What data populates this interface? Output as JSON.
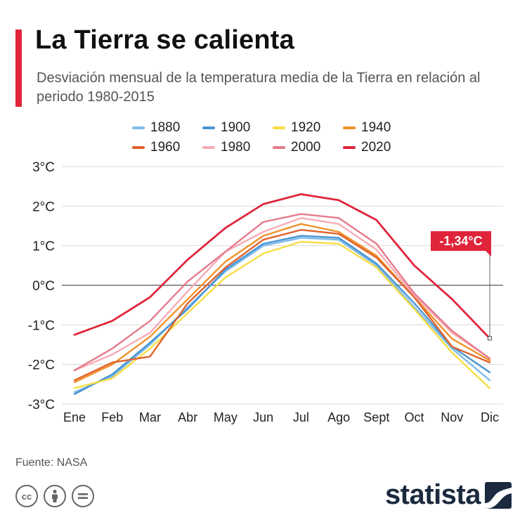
{
  "header": {
    "title": "La Tierra se calienta",
    "subtitle": "Desviación mensual de la temperatura media de la Tierra en relación al periodo 1980-2015"
  },
  "colors": {
    "accent": "#e0253b",
    "grid": "#d9d9d9",
    "zero_line": "#555555",
    "axis_text": "#222222"
  },
  "chart_data": {
    "type": "line",
    "title": "La Tierra se calienta",
    "xlabel": "",
    "ylabel": "",
    "ylim": [
      -3,
      3
    ],
    "y_ticks": [
      3,
      2,
      1,
      0,
      -1,
      -2,
      -3
    ],
    "y_tick_labels": [
      "3°C",
      "2°C",
      "1°C",
      "0°C",
      "-1°C",
      "-2°C",
      "-3°C"
    ],
    "categories": [
      "Ene",
      "Feb",
      "Mar",
      "Abr",
      "May",
      "Jun",
      "Jul",
      "Ago",
      "Sept",
      "Oct",
      "Nov",
      "Dic"
    ],
    "series": [
      {
        "name": "1880",
        "color": "#7dbbe8",
        "values": [
          -2.7,
          -2.3,
          -1.5,
          -0.55,
          0.35,
          1.0,
          1.2,
          1.15,
          0.5,
          -0.55,
          -1.6,
          -2.4
        ]
      },
      {
        "name": "1900",
        "color": "#4a94d0",
        "values": [
          -2.75,
          -2.25,
          -1.45,
          -0.6,
          0.4,
          1.05,
          1.25,
          1.2,
          0.55,
          -0.45,
          -1.55,
          -2.2
        ]
      },
      {
        "name": "1920",
        "color": "#f7dd45",
        "values": [
          -2.6,
          -2.35,
          -1.6,
          -0.7,
          0.2,
          0.8,
          1.1,
          1.05,
          0.45,
          -0.6,
          -1.7,
          -2.6
        ]
      },
      {
        "name": "1940",
        "color": "#f0912c",
        "values": [
          -2.45,
          -2.0,
          -1.3,
          -0.35,
          0.6,
          1.25,
          1.55,
          1.35,
          0.75,
          -0.3,
          -1.35,
          -1.9
        ]
      },
      {
        "name": "1960",
        "color": "#e0622c",
        "values": [
          -2.4,
          -1.95,
          -1.8,
          -0.45,
          0.45,
          1.15,
          1.4,
          1.3,
          0.7,
          -0.3,
          -1.55,
          -1.95
        ]
      },
      {
        "name": "1980",
        "color": "#f8abb5",
        "values": [
          -2.15,
          -1.75,
          -1.2,
          -0.15,
          0.85,
          1.35,
          1.7,
          1.55,
          0.9,
          -0.25,
          -1.2,
          -1.85
        ]
      },
      {
        "name": "2000",
        "color": "#e57a8a",
        "values": [
          -2.15,
          -1.6,
          -0.9,
          0.1,
          0.85,
          1.6,
          1.8,
          1.7,
          1.05,
          -0.2,
          -1.15,
          -1.85
        ]
      },
      {
        "name": "2020",
        "color": "#e0253b",
        "values": [
          -1.25,
          -0.9,
          -0.3,
          0.65,
          1.45,
          2.05,
          2.3,
          2.15,
          1.65,
          0.5,
          -0.35,
          -1.34
        ]
      }
    ],
    "annotation": {
      "label": "-1,34°C",
      "series": "2020",
      "category": "Dic",
      "value": -1.34
    }
  },
  "source": {
    "label": "Fuente: NASA"
  },
  "license_icons": [
    "cc-icon",
    "attribution-icon",
    "no-derivatives-icon"
  ],
  "brand": {
    "name": "statista"
  }
}
